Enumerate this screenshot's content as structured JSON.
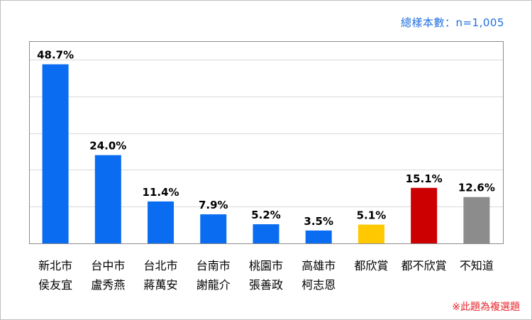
{
  "sample_note": "總樣本數：n=1,005",
  "footnote": "※此題為複選題",
  "chart_data": {
    "type": "bar",
    "categories": [
      [
        "新北市",
        "侯友宜"
      ],
      [
        "台中市",
        "盧秀燕"
      ],
      [
        "台北市",
        "蔣萬安"
      ],
      [
        "台南市",
        "謝龍介"
      ],
      [
        "桃園市",
        "張善政"
      ],
      [
        "高雄市",
        "柯志恩"
      ],
      [
        "都欣賞"
      ],
      [
        "都不欣賞"
      ],
      [
        "不知道"
      ]
    ],
    "values": [
      48.7,
      24.0,
      11.4,
      7.9,
      5.2,
      3.5,
      5.1,
      15.1,
      12.6
    ],
    "labels": [
      "48.7%",
      "24.0%",
      "11.4%",
      "7.9%",
      "5.2%",
      "3.5%",
      "5.1%",
      "15.1%",
      "12.6%"
    ],
    "colors": [
      "#0a6cf0",
      "#0a6cf0",
      "#0a6cf0",
      "#0a6cf0",
      "#0a6cf0",
      "#0a6cf0",
      "#ffc800",
      "#cc0000",
      "#8c8c8c"
    ],
    "ylim": [
      0,
      55
    ],
    "grid": true,
    "title": "",
    "xlabel": "",
    "ylabel": ""
  }
}
